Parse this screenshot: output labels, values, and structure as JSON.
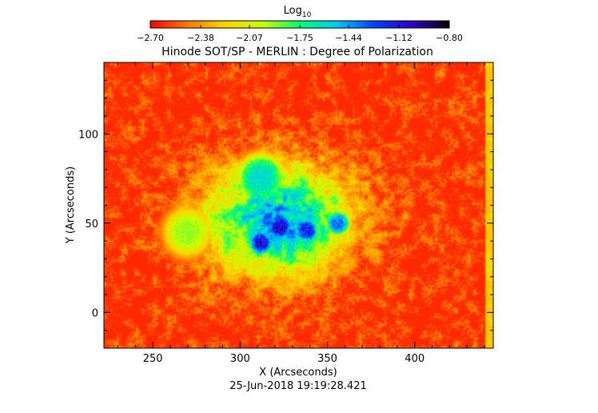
{
  "colorbar": {
    "title": "Log",
    "title_subscript": "10",
    "tick_labels": [
      "-2.70",
      "-2.38",
      "-2.07",
      "-1.75",
      "-1.44",
      "-1.12",
      "-0.80"
    ],
    "range": [
      -2.7,
      -0.8
    ],
    "colors": [
      "#ff0000",
      "#ff7a00",
      "#ffd200",
      "#c8ff00",
      "#00ff70",
      "#00c8ff",
      "#0040ff",
      "#3000c8",
      "#000000"
    ]
  },
  "chart_data": {
    "type": "heatmap",
    "title": "Hinode SOT/SP - MERLIN : Degree of Polarization",
    "xlabel": "X (Arcseconds)",
    "ylabel": "Y (Arcseconds)",
    "xlim": [
      222,
      445
    ],
    "ylim": [
      -20,
      140
    ],
    "xticks": [
      250,
      300,
      350,
      400
    ],
    "yticks": [
      0,
      50,
      100
    ],
    "xtick_labels": [
      "250",
      "300",
      "350",
      "400"
    ],
    "ytick_labels": [
      "0",
      "50",
      "100"
    ],
    "value_range": [
      -2.7,
      -0.8
    ],
    "background_level": -2.62,
    "features": [
      {
        "name": "umbra-1",
        "x": 323,
        "y": 48,
        "peak": -1.0
      },
      {
        "name": "umbra-2",
        "x": 312,
        "y": 39,
        "peak": -1.05
      },
      {
        "name": "umbra-3",
        "x": 338,
        "y": 46,
        "peak": -1.1
      },
      {
        "name": "umbra-4",
        "x": 356,
        "y": 50,
        "peak": -1.3
      },
      {
        "name": "plage-north",
        "x": 312,
        "y": 75,
        "peak": -1.55
      },
      {
        "name": "plage-west",
        "x": 270,
        "y": 45,
        "peak": -1.9
      }
    ]
  },
  "footer": {
    "timestamp": "25-Jun-2018 19:19:28.421"
  }
}
